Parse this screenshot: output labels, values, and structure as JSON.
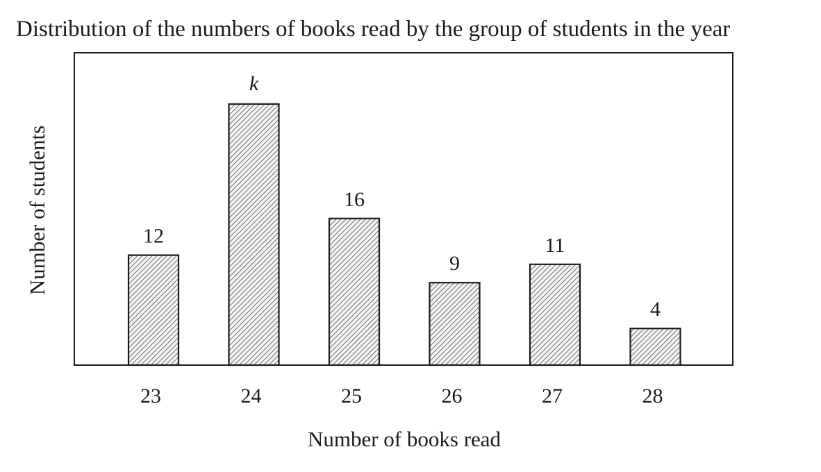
{
  "chart_data": {
    "type": "bar",
    "title": "Distribution of the numbers of books read by the group of students in the year",
    "xlabel": "Number of books read",
    "ylabel": "Number of students",
    "categories": [
      "23",
      "24",
      "25",
      "26",
      "27",
      "28"
    ],
    "values": [
      12,
      null,
      16,
      9,
      11,
      4
    ],
    "data_labels": [
      "12",
      "k",
      "16",
      "9",
      "11",
      "4"
    ],
    "estimated_values": [
      12,
      28.5,
      16,
      9,
      11,
      4
    ],
    "ylim": [
      0,
      33
    ],
    "grid": false,
    "legend": "none",
    "bar_fill": "hatched",
    "colors": {
      "ink": "#1a1a1a",
      "background": "#ffffff",
      "hatch": "#4a4a4a"
    }
  }
}
